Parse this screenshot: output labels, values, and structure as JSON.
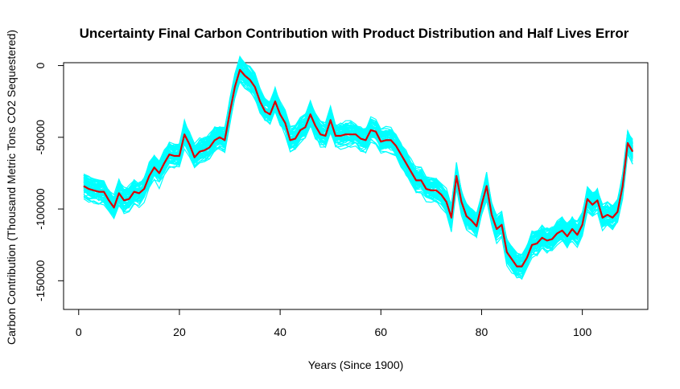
{
  "chart_data": {
    "type": "line",
    "title": "Uncertainty Final Carbon Contribution with Product Distribution and Half Lives Error",
    "xlabel": "Years (Since 1900)",
    "ylabel": "Carbon Contribution (Thousand Metric Tons CO2 Sequestered)",
    "xlim": [
      -3,
      113
    ],
    "ylim": [
      -170000,
      2000
    ],
    "x_ticks": [
      0,
      20,
      40,
      60,
      80,
      100
    ],
    "x_tick_labels": [
      "0",
      "20",
      "40",
      "60",
      "80",
      "100"
    ],
    "y_ticks": [
      0,
      -50000,
      -100000,
      -150000
    ],
    "y_tick_labels": [
      "0",
      "-50000",
      "-100000",
      "-150000"
    ],
    "grid": false,
    "legend": "none",
    "colors": {
      "mean_line": "#dd0000",
      "uncertainty_band": "#00ffff"
    },
    "x": [
      1,
      2,
      3,
      4,
      5,
      6,
      7,
      8,
      9,
      10,
      11,
      12,
      13,
      14,
      15,
      16,
      17,
      18,
      19,
      20,
      21,
      22,
      23,
      24,
      25,
      26,
      27,
      28,
      29,
      30,
      31,
      32,
      33,
      34,
      35,
      36,
      37,
      38,
      39,
      40,
      41,
      42,
      43,
      44,
      45,
      46,
      47,
      48,
      49,
      50,
      51,
      52,
      53,
      54,
      55,
      56,
      57,
      58,
      59,
      60,
      61,
      62,
      63,
      64,
      65,
      66,
      67,
      68,
      69,
      70,
      71,
      72,
      73,
      74,
      75,
      76,
      77,
      78,
      79,
      80,
      81,
      82,
      83,
      84,
      85,
      86,
      87,
      88,
      89,
      90,
      91,
      92,
      93,
      94,
      95,
      96,
      97,
      98,
      99,
      100,
      101,
      102,
      103,
      104,
      105,
      106,
      107,
      108,
      109,
      110
    ],
    "series": [
      {
        "values": [
          -84000,
          -86000,
          -87000,
          -88000,
          -88000,
          -94000,
          -99000,
          -89000,
          -94000,
          -93000,
          -88000,
          -89000,
          -86000,
          -77000,
          -71000,
          -75000,
          -68000,
          -62000,
          -63000,
          -63000,
          -48000,
          -55000,
          -64000,
          -60000,
          -59000,
          -57000,
          -52000,
          -50000,
          -52000,
          -33000,
          -15000,
          -3000,
          -7000,
          -10000,
          -15000,
          -25000,
          -32000,
          -34000,
          -25000,
          -34000,
          -40000,
          -52000,
          -51000,
          -45000,
          -43000,
          -34000,
          -42000,
          -48000,
          -49000,
          -38000,
          -49000,
          -49000,
          -48000,
          -48000,
          -48000,
          -51000,
          -52000,
          -45000,
          -46000,
          -53000,
          -52000,
          -52000,
          -56000,
          -62000,
          -68000,
          -74000,
          -80000,
          -80000,
          -86000,
          -87000,
          -87000,
          -90000,
          -95000,
          -106000,
          -77000,
          -95000,
          -105000,
          -108000,
          -112000,
          -97000,
          -84000,
          -104000,
          -114000,
          -111000,
          -130000,
          -135000,
          -140000,
          -140000,
          -134000,
          -125000,
          -124000,
          -120000,
          -122000,
          -121000,
          -117000,
          -115000,
          -119000,
          -114000,
          -118000,
          -111000,
          -93000,
          -97000,
          -94000,
          -106000,
          -104000,
          -106000,
          -102000,
          -84000,
          -54000,
          -60000
        ],
        "spread": 8000
      }
    ]
  }
}
